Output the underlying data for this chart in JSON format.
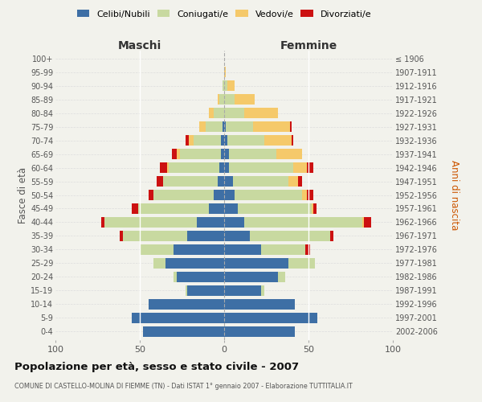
{
  "age_groups": [
    "0-4",
    "5-9",
    "10-14",
    "15-19",
    "20-24",
    "25-29",
    "30-34",
    "35-39",
    "40-44",
    "45-49",
    "50-54",
    "55-59",
    "60-64",
    "65-69",
    "70-74",
    "75-79",
    "80-84",
    "85-89",
    "90-94",
    "95-99",
    "100+"
  ],
  "birth_years": [
    "2002-2006",
    "1997-2001",
    "1992-1996",
    "1987-1991",
    "1982-1986",
    "1977-1981",
    "1972-1976",
    "1967-1971",
    "1962-1966",
    "1957-1961",
    "1952-1956",
    "1947-1951",
    "1942-1946",
    "1937-1941",
    "1932-1936",
    "1927-1931",
    "1922-1926",
    "1917-1921",
    "1912-1916",
    "1907-1911",
    "≤ 1906"
  ],
  "colors": {
    "celibi": "#3e6fa5",
    "coniugati": "#c8d9a0",
    "vedovi": "#f5c96a",
    "divorziati": "#cc1111"
  },
  "males": {
    "celibi": [
      48,
      55,
      45,
      22,
      28,
      35,
      30,
      22,
      16,
      9,
      6,
      4,
      3,
      2,
      2,
      1,
      0,
      0,
      0,
      0,
      0
    ],
    "coniugati": [
      0,
      0,
      0,
      1,
      2,
      7,
      20,
      38,
      55,
      42,
      36,
      32,
      30,
      24,
      16,
      10,
      6,
      3,
      1,
      0,
      0
    ],
    "vedovi": [
      0,
      0,
      0,
      0,
      0,
      0,
      0,
      0,
      0,
      0,
      0,
      0,
      1,
      2,
      3,
      4,
      3,
      1,
      0,
      0,
      0
    ],
    "divorziati": [
      0,
      0,
      0,
      0,
      0,
      0,
      0,
      2,
      2,
      4,
      3,
      4,
      4,
      3,
      2,
      0,
      0,
      0,
      0,
      0,
      0
    ]
  },
  "females": {
    "nubili": [
      42,
      55,
      42,
      22,
      32,
      38,
      22,
      15,
      12,
      8,
      6,
      5,
      3,
      3,
      2,
      1,
      0,
      0,
      0,
      0,
      0
    ],
    "coniugate": [
      0,
      0,
      0,
      2,
      4,
      16,
      26,
      48,
      70,
      44,
      40,
      33,
      38,
      28,
      22,
      16,
      12,
      6,
      2,
      0,
      0
    ],
    "vedove": [
      0,
      0,
      0,
      0,
      0,
      0,
      0,
      0,
      1,
      1,
      3,
      6,
      8,
      15,
      16,
      22,
      20,
      12,
      4,
      1,
      0
    ],
    "divorziate": [
      0,
      0,
      0,
      0,
      0,
      0,
      3,
      2,
      4,
      2,
      4,
      2,
      4,
      0,
      1,
      1,
      0,
      0,
      0,
      0,
      0
    ]
  },
  "xlim": 100,
  "title": "Popolazione per età, sesso e stato civile - 2007",
  "subtitle": "COMUNE DI CASTELLO-MOLINA DI FIEMME (TN) - Dati ISTAT 1° gennaio 2007 - Elaborazione TUTTITALIA.IT",
  "xlabel_left": "Maschi",
  "xlabel_right": "Femmine",
  "ylabel_left": "Fasce di età",
  "ylabel_right": "Anni di nascita",
  "legend_labels": [
    "Celibi/Nubili",
    "Coniugati/e",
    "Vedovi/e",
    "Divorziati/e"
  ],
  "bg_color": "#f2f2ec",
  "bar_height": 0.78
}
